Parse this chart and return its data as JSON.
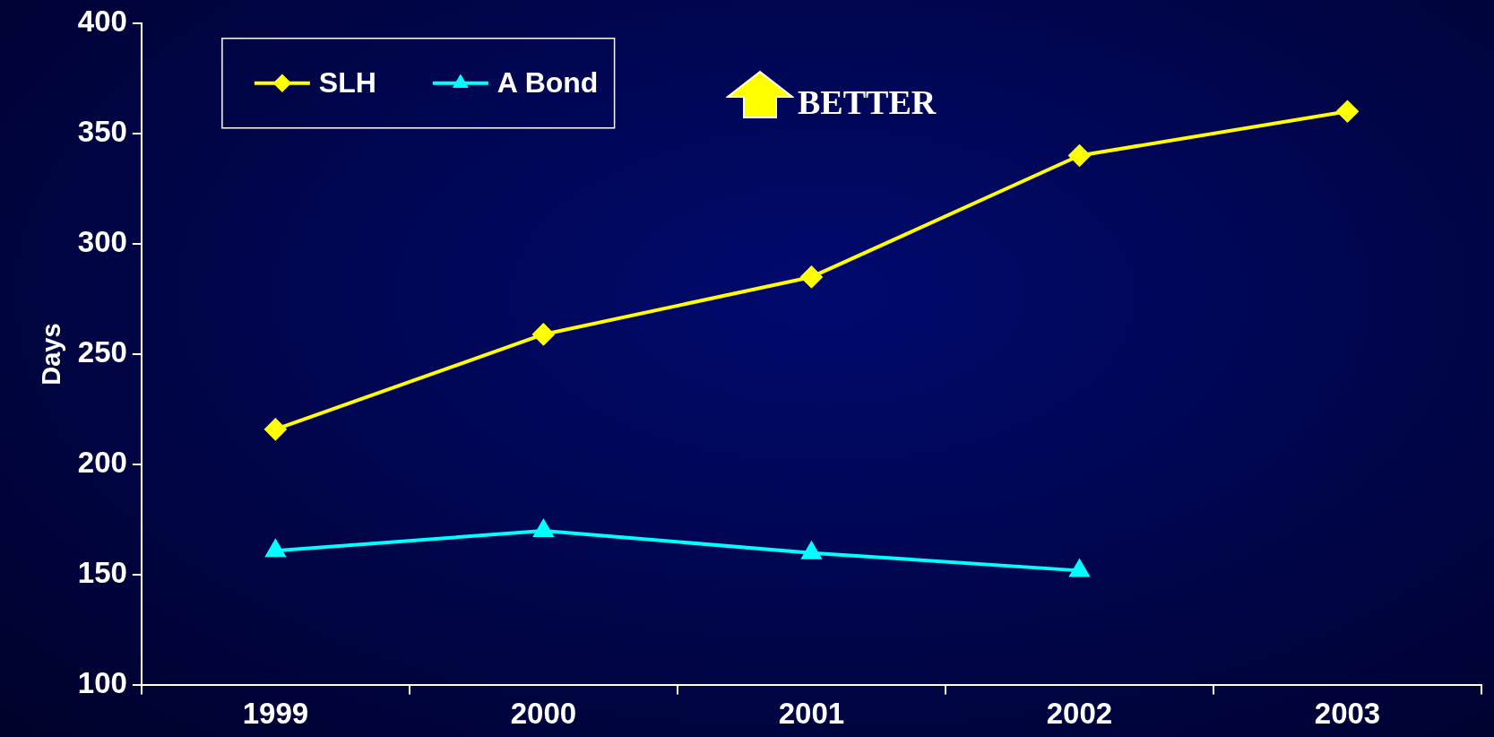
{
  "chart_data": {
    "type": "line",
    "ylabel": "Days",
    "categories": [
      "1999",
      "2000",
      "2001",
      "2002",
      "2003"
    ],
    "series": [
      {
        "name": "SLH",
        "color": "#ffff00",
        "marker": "diamond",
        "values": [
          216,
          259,
          285,
          340,
          360
        ]
      },
      {
        "name": "A Bond",
        "color": "#00ffff",
        "marker": "triangle",
        "values": [
          161,
          170,
          160,
          152,
          null
        ]
      }
    ],
    "ylim": [
      100,
      400
    ],
    "yticks": [
      100,
      150,
      200,
      250,
      300,
      350,
      400
    ],
    "legend": "top left",
    "annotations": [
      "BETTER"
    ]
  }
}
